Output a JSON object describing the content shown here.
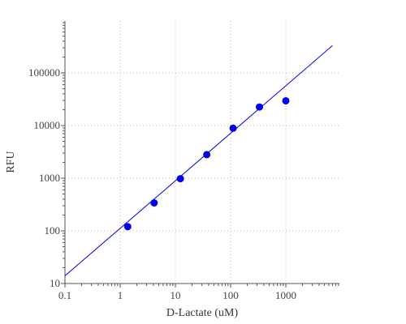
{
  "chart_data": {
    "type": "scatter",
    "title": "",
    "xlabel": "D-Lactate (uM)",
    "ylabel": "RFU",
    "x_scale": "log",
    "y_scale": "log",
    "xlim": [
      0.1,
      10000
    ],
    "ylim": [
      10,
      1000000
    ],
    "x_ticks": [
      0.1,
      1,
      10,
      100,
      1000
    ],
    "x_tick_labels": [
      "0.1",
      "1",
      "10",
      "100",
      "1000"
    ],
    "y_ticks": [
      10,
      100,
      1000,
      10000,
      100000
    ],
    "y_tick_labels": [
      "10",
      "100",
      "1000",
      "10000",
      "100000"
    ],
    "grid": true,
    "series": [
      {
        "type": "scatter",
        "color": "#0000ee",
        "x": [
          1.37,
          4.12,
          12.3,
          37.0,
          111,
          333,
          1000
        ],
        "y": [
          120,
          340,
          980,
          2800,
          8900,
          22500,
          29500
        ]
      },
      {
        "type": "line",
        "color": "#0000ee",
        "x": [
          0.1,
          7000
        ],
        "y": [
          14,
          330000
        ]
      }
    ]
  }
}
